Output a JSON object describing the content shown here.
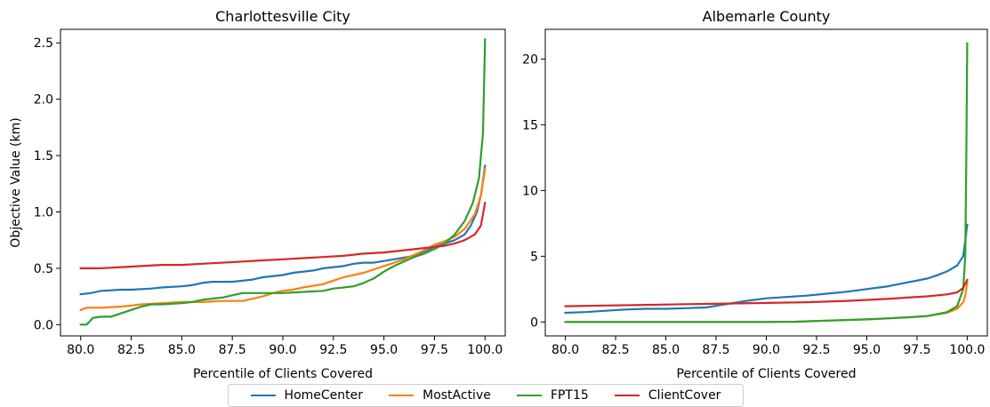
{
  "chart_data": [
    {
      "type": "line",
      "title": "Charlottesville City",
      "xlabel": "Percentile of Clients Covered",
      "ylabel": "Objective Value (km)",
      "xlim": [
        79.0,
        101.0
      ],
      "ylim": [
        -0.1,
        2.62
      ],
      "xticks": [
        "80.0",
        "82.5",
        "85.0",
        "87.5",
        "90.0",
        "92.5",
        "95.0",
        "97.5",
        "100.0"
      ],
      "xtick_values": [
        80,
        82.5,
        85,
        87.5,
        90,
        92.5,
        95,
        97.5,
        100
      ],
      "yticks": [
        "0.0",
        "0.5",
        "1.0",
        "1.5",
        "2.0",
        "2.5"
      ],
      "ytick_values": [
        0,
        0.5,
        1.0,
        1.5,
        2.0,
        2.5
      ],
      "series": [
        {
          "name": "HomeCenter",
          "color": "#1f77b4",
          "x": [
            80,
            80.5,
            81,
            82,
            82.5,
            83.5,
            84,
            85,
            85.5,
            86,
            86.5,
            87.5,
            88.5,
            89,
            90,
            90.5,
            91.5,
            92,
            93,
            93.5,
            94,
            94.5,
            95.5,
            96.5,
            97,
            97.5,
            98,
            98.5,
            99,
            99.3,
            99.6,
            99.8,
            100
          ],
          "y": [
            0.27,
            0.28,
            0.3,
            0.31,
            0.31,
            0.32,
            0.33,
            0.34,
            0.35,
            0.37,
            0.38,
            0.38,
            0.4,
            0.42,
            0.44,
            0.46,
            0.48,
            0.5,
            0.52,
            0.54,
            0.55,
            0.55,
            0.58,
            0.61,
            0.65,
            0.69,
            0.72,
            0.75,
            0.8,
            0.88,
            1.0,
            1.15,
            1.41
          ]
        },
        {
          "name": "MostActive",
          "color": "#ff7f0e",
          "x": [
            80,
            80.3,
            81,
            82,
            82.5,
            83,
            84,
            85,
            86,
            87,
            88,
            89,
            89.5,
            90,
            90.5,
            91,
            92,
            92.5,
            93,
            94,
            94.5,
            95,
            96,
            96.5,
            97,
            97.5,
            98,
            98.5,
            99,
            99.5,
            99.8,
            100
          ],
          "y": [
            0.13,
            0.15,
            0.15,
            0.16,
            0.17,
            0.18,
            0.19,
            0.2,
            0.2,
            0.21,
            0.21,
            0.25,
            0.28,
            0.3,
            0.31,
            0.33,
            0.36,
            0.39,
            0.42,
            0.46,
            0.49,
            0.52,
            0.58,
            0.62,
            0.66,
            0.71,
            0.74,
            0.78,
            0.85,
            0.98,
            1.15,
            1.38
          ]
        },
        {
          "name": "FPT15",
          "color": "#2ca02c",
          "x": [
            80,
            80.3,
            80.6,
            81,
            81.5,
            82,
            82.5,
            83,
            83.5,
            84,
            85,
            85.5,
            86,
            87,
            87.5,
            88,
            90,
            91,
            92,
            92.5,
            93,
            93.5,
            94,
            94.5,
            95,
            95.5,
            96,
            96.5,
            97,
            97.5,
            98,
            98.5,
            99,
            99.4,
            99.7,
            99.9,
            100
          ],
          "y": [
            0.0,
            0.0,
            0.06,
            0.07,
            0.07,
            0.1,
            0.13,
            0.16,
            0.18,
            0.18,
            0.19,
            0.2,
            0.22,
            0.24,
            0.26,
            0.28,
            0.28,
            0.29,
            0.3,
            0.32,
            0.33,
            0.34,
            0.37,
            0.41,
            0.47,
            0.52,
            0.56,
            0.6,
            0.63,
            0.67,
            0.72,
            0.8,
            0.92,
            1.08,
            1.3,
            1.7,
            2.53
          ]
        },
        {
          "name": "ClientCover",
          "color": "#d62728",
          "x": [
            80,
            81,
            82,
            83,
            84,
            85,
            86,
            87,
            88,
            89,
            90,
            91,
            92,
            93,
            94,
            95,
            96,
            97,
            98,
            98.5,
            99,
            99.5,
            99.8,
            100
          ],
          "y": [
            0.5,
            0.5,
            0.51,
            0.52,
            0.53,
            0.53,
            0.54,
            0.55,
            0.56,
            0.57,
            0.58,
            0.59,
            0.6,
            0.61,
            0.63,
            0.64,
            0.66,
            0.68,
            0.7,
            0.72,
            0.75,
            0.8,
            0.88,
            1.08
          ]
        }
      ]
    },
    {
      "type": "line",
      "title": "Albemarle County",
      "xlabel": "Percentile of Clients Covered",
      "ylabel": "",
      "xlim": [
        79.0,
        101.0
      ],
      "ylim": [
        -1.06,
        22.26
      ],
      "xticks": [
        "80.0",
        "82.5",
        "85.0",
        "87.5",
        "90.0",
        "92.5",
        "95.0",
        "97.5",
        "100.0"
      ],
      "xtick_values": [
        80,
        82.5,
        85,
        87.5,
        90,
        92.5,
        95,
        97.5,
        100
      ],
      "yticks": [
        "0",
        "5",
        "10",
        "15",
        "20"
      ],
      "ytick_values": [
        0,
        5,
        10,
        15,
        20
      ],
      "series": [
        {
          "name": "HomeCenter",
          "color": "#1f77b4",
          "x": [
            80,
            81,
            82,
            83,
            84,
            85,
            86,
            87,
            88,
            89,
            90,
            91,
            92,
            93,
            94,
            95,
            96,
            97,
            98,
            98.5,
            99,
            99.5,
            99.8,
            99.9,
            100
          ],
          "y": [
            0.7,
            0.75,
            0.85,
            0.95,
            1.0,
            1.0,
            1.05,
            1.1,
            1.35,
            1.6,
            1.8,
            1.9,
            2.0,
            2.15,
            2.3,
            2.5,
            2.7,
            3.0,
            3.3,
            3.55,
            3.85,
            4.3,
            5.0,
            6.2,
            7.4
          ]
        },
        {
          "name": "MostActive",
          "color": "#ff7f0e",
          "x": [
            80,
            85,
            90,
            91.5,
            93,
            95,
            96,
            97,
            98,
            99,
            99.5,
            99.8,
            99.9,
            100
          ],
          "y": [
            0.0,
            0.0,
            0.0,
            0.02,
            0.1,
            0.2,
            0.27,
            0.35,
            0.45,
            0.7,
            1.0,
            1.5,
            2.0,
            3.0
          ]
        },
        {
          "name": "FPT15",
          "color": "#2ca02c",
          "x": [
            80,
            85,
            90,
            91.5,
            93,
            95,
            96,
            97,
            98,
            99,
            99.5,
            99.8,
            99.9,
            99.95,
            100
          ],
          "y": [
            0.0,
            0.0,
            0.0,
            0.02,
            0.1,
            0.2,
            0.27,
            0.35,
            0.45,
            0.75,
            1.2,
            2.5,
            5.0,
            12.0,
            21.2
          ]
        },
        {
          "name": "ClientCover",
          "color": "#d62728",
          "x": [
            80,
            82,
            84,
            86,
            88,
            90,
            92,
            94,
            96,
            97,
            98,
            99,
            99.5,
            99.8,
            100
          ],
          "y": [
            1.2,
            1.25,
            1.3,
            1.35,
            1.4,
            1.45,
            1.5,
            1.6,
            1.75,
            1.85,
            1.95,
            2.1,
            2.25,
            2.6,
            3.2
          ]
        }
      ]
    }
  ],
  "legend": {
    "placement": "bottom-center",
    "items": [
      {
        "label": "HomeCenter",
        "color": "#1f77b4"
      },
      {
        "label": "MostActive",
        "color": "#ff7f0e"
      },
      {
        "label": "FPT15",
        "color": "#2ca02c"
      },
      {
        "label": "ClientCover",
        "color": "#d62728"
      }
    ]
  }
}
